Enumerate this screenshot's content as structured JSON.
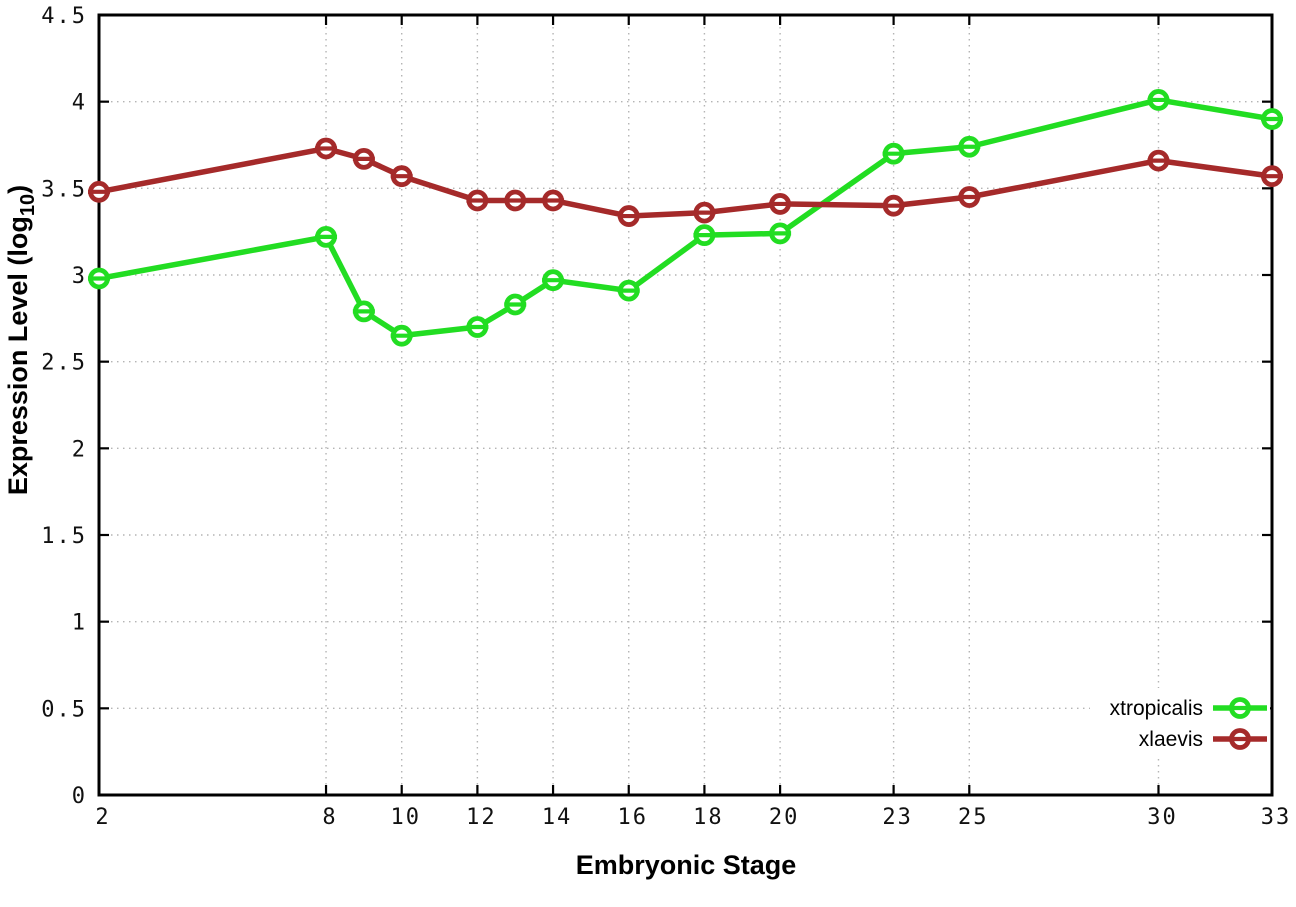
{
  "chart_data": {
    "type": "line",
    "title": "",
    "xlabel": "Embryonic Stage",
    "ylabel": "Expression Level (log10)",
    "ylabel_rich": {
      "main": "Expression Level (log",
      "subscript": "10",
      "end": ")"
    },
    "x": [
      2,
      8,
      9,
      10,
      12,
      13,
      14,
      16,
      18,
      20,
      23,
      25,
      30,
      33
    ],
    "series": [
      {
        "name": "xtropicalis",
        "color": "#22dd22",
        "values": [
          2.98,
          3.22,
          2.79,
          2.65,
          2.7,
          2.83,
          2.97,
          2.91,
          3.23,
          3.24,
          3.7,
          3.74,
          4.01,
          3.9
        ]
      },
      {
        "name": "xlaevis",
        "color": "#a52a2a",
        "values": [
          3.48,
          3.73,
          3.67,
          3.57,
          3.43,
          3.43,
          3.43,
          3.34,
          3.36,
          3.41,
          3.4,
          3.45,
          3.66,
          3.57
        ]
      }
    ],
    "xlim": [
      2,
      33
    ],
    "ylim": [
      0,
      4.5
    ],
    "x_tick_labels": [
      "2",
      "8",
      "10",
      "12",
      "14",
      "16",
      "18",
      "20",
      "23",
      "25",
      "30",
      "33"
    ],
    "y_tick_labels": [
      "0",
      "0.5",
      "1",
      "1.5",
      "2",
      "2.5",
      "3",
      "3.5",
      "4",
      "4.5"
    ],
    "grid": true,
    "legend_position": "inside-bottom-right",
    "marker": "open-circle-hline",
    "colors": {
      "background": "#ffffff",
      "border": "#000000",
      "grid": "#b4b4b4",
      "text": "#000000"
    }
  }
}
